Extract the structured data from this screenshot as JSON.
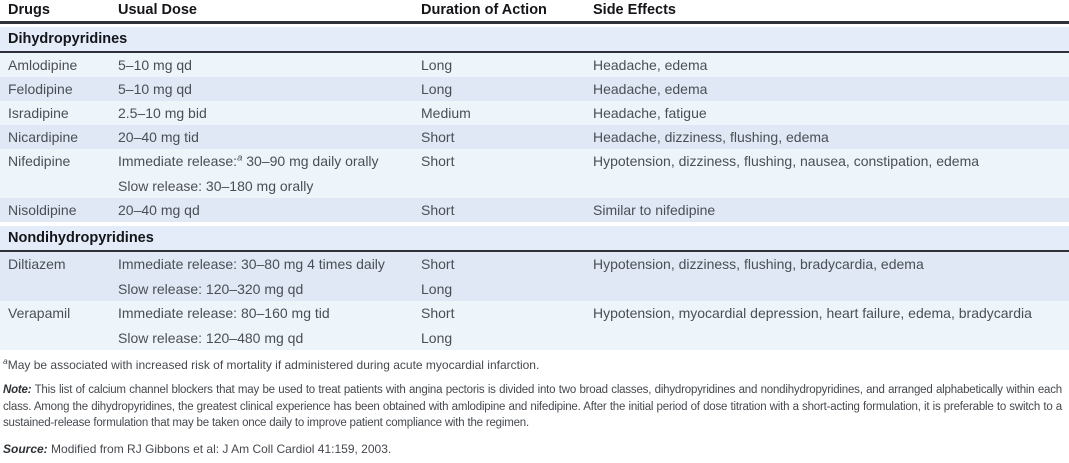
{
  "colors": {
    "row_light": "#edf5fb",
    "row_dark": "#dfe8f4",
    "section_bar_bg": "#e3ecf8",
    "rule": "#2e3238",
    "body_text": "#4b4f55"
  },
  "table": {
    "columns": [
      {
        "label": "Drugs"
      },
      {
        "label": "Usual Dose"
      },
      {
        "label": "Duration of Action"
      },
      {
        "label": "Side Effects"
      }
    ],
    "sections": [
      {
        "header": "Dihydropyridines",
        "rows": [
          {
            "drug": "Amlodipine",
            "dose": "5–10 mg qd",
            "duration": "Long",
            "side_effects": "Headache, edema"
          },
          {
            "drug": "Felodipine",
            "dose": "5–10 mg qd",
            "duration": "Long",
            "side_effects": "Headache, edema"
          },
          {
            "drug": "Isradipine",
            "dose": "2.5–10 mg bid",
            "duration": "Medium",
            "side_effects": "Headache, fatigue"
          },
          {
            "drug": "Nicardipine",
            "dose": "20–40 mg tid",
            "duration": "Short",
            "side_effects": "Headache, dizziness, flushing, edema"
          },
          {
            "drug": "Nifedipine",
            "dose_lines": [
              {
                "pre": "Immediate release:",
                "sup": "a",
                "post": " 30–90 mg daily orally"
              },
              {
                "pre": "Slow release: 30–180 mg orally",
                "sup": "",
                "post": ""
              }
            ],
            "durations": [
              "Short"
            ],
            "side_effects": "Hypotension, dizziness, flushing, nausea, constipation, edema"
          },
          {
            "drug": "Nisoldipine",
            "dose": "20–40 mg qd",
            "duration": "Short",
            "side_effects": "Similar to nifedipine"
          }
        ]
      },
      {
        "header": "Nondihydropyridines",
        "rows": [
          {
            "drug": "Diltiazem",
            "dose_lines": [
              {
                "pre": "Immediate release: 30–80 mg 4 times daily",
                "sup": "",
                "post": ""
              },
              {
                "pre": "Slow release: 120–320 mg qd",
                "sup": "",
                "post": ""
              }
            ],
            "durations": [
              "Short",
              "Long"
            ],
            "side_effects": "Hypotension, dizziness, flushing, bradycardia, edema"
          },
          {
            "drug": "Verapamil",
            "dose_lines": [
              {
                "pre": "Immediate release: 80–160 mg tid",
                "sup": "",
                "post": ""
              },
              {
                "pre": "Slow release: 120–480 mg qd",
                "sup": "",
                "post": ""
              }
            ],
            "durations": [
              "Short",
              "Long"
            ],
            "side_effects": "Hypotension, myocardial depression, heart failure, edema, bradycardia"
          }
        ]
      }
    ]
  },
  "footnotes": {
    "a_marker": "a",
    "a_text": "May be associated with increased risk of mortality if administered during acute myocardial infarction.",
    "note_label": "Note:",
    "note_text": "This list of calcium channel blockers that may be used to treat patients with angina pectoris is divided into two broad classes, dihydropyridines and nondihydropyridines, and arranged alphabetically within each class. Among the dihydropyridines, the greatest clinical experience has been obtained with amlodipine and nifedipine. After the initial period of dose titration with a short-acting formulation, it is preferable to switch to a sustained-release formulation that may be taken once daily to improve patient compliance with the regimen.",
    "source_label": "Source:",
    "source_text": "Modified from RJ Gibbons et al: J Am Coll Cardiol 41:159, 2003."
  }
}
